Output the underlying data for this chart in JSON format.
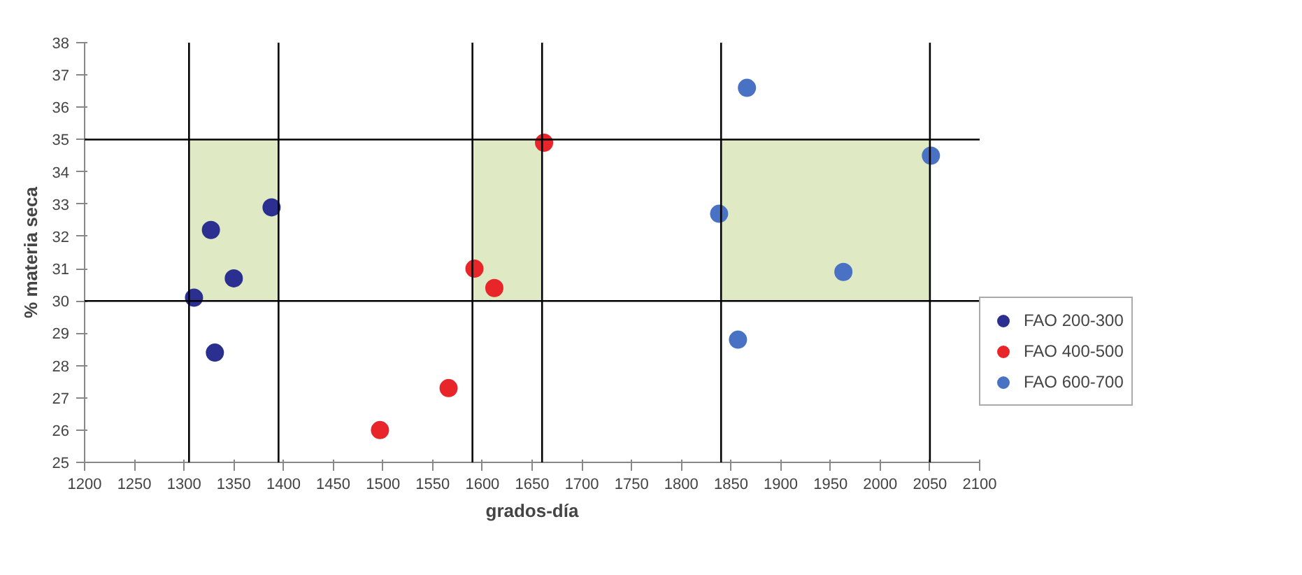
{
  "chart_data": {
    "type": "scatter",
    "xlabel": "grados-día",
    "ylabel": "% materia seca",
    "xlim": [
      1200,
      2100
    ],
    "xticks": [
      1200,
      1250,
      1300,
      1350,
      1400,
      1450,
      1500,
      1550,
      1600,
      1650,
      1700,
      1750,
      1800,
      1850,
      1900,
      1950,
      2000,
      2050,
      2100
    ],
    "ylim": [
      25,
      38
    ],
    "yticks": [
      25,
      26,
      27,
      28,
      29,
      30,
      31,
      32,
      33,
      34,
      35,
      36,
      37,
      38
    ],
    "grid": false,
    "legend": "right",
    "marker": "circle",
    "series": [
      {
        "name": "FAO 200-300",
        "color": "#2b2f8f",
        "x": [
          1310,
          1327,
          1331,
          1350,
          1388
        ],
        "values": [
          30.1,
          32.2,
          28.4,
          30.7,
          32.9
        ]
      },
      {
        "name": "FAO 400-500",
        "color": "#e8262a",
        "x": [
          1497,
          1566,
          1592,
          1612,
          1662
        ],
        "values": [
          26.0,
          27.3,
          31.0,
          30.4,
          34.9
        ]
      },
      {
        "name": "FAO 600-700",
        "color": "#4a72c4",
        "x": [
          1838,
          1857,
          1866,
          1963,
          2051
        ],
        "values": [
          32.7,
          28.8,
          36.6,
          30.9,
          34.5
        ]
      }
    ],
    "ref_lines": [
      {
        "axis": "y",
        "value": 30,
        "color": "#000000"
      },
      {
        "axis": "y",
        "value": 35,
        "color": "#000000"
      },
      {
        "axis": "x",
        "value": 1305,
        "color": "#000000"
      },
      {
        "axis": "x",
        "value": 1395,
        "color": "#000000"
      },
      {
        "axis": "x",
        "value": 1590,
        "color": "#000000"
      },
      {
        "axis": "x",
        "value": 1660,
        "color": "#000000"
      },
      {
        "axis": "x",
        "value": 1840,
        "color": "#000000"
      },
      {
        "axis": "x",
        "value": 2050,
        "color": "#000000"
      }
    ],
    "bands": [
      {
        "axis": "x",
        "from": 1305,
        "to": 1395,
        "color": "#dfeac4"
      },
      {
        "axis": "x",
        "from": 1590,
        "to": 1660,
        "color": "#dfeac4"
      },
      {
        "axis": "x",
        "from": 1840,
        "to": 2050,
        "color": "#dfeac4"
      }
    ]
  }
}
